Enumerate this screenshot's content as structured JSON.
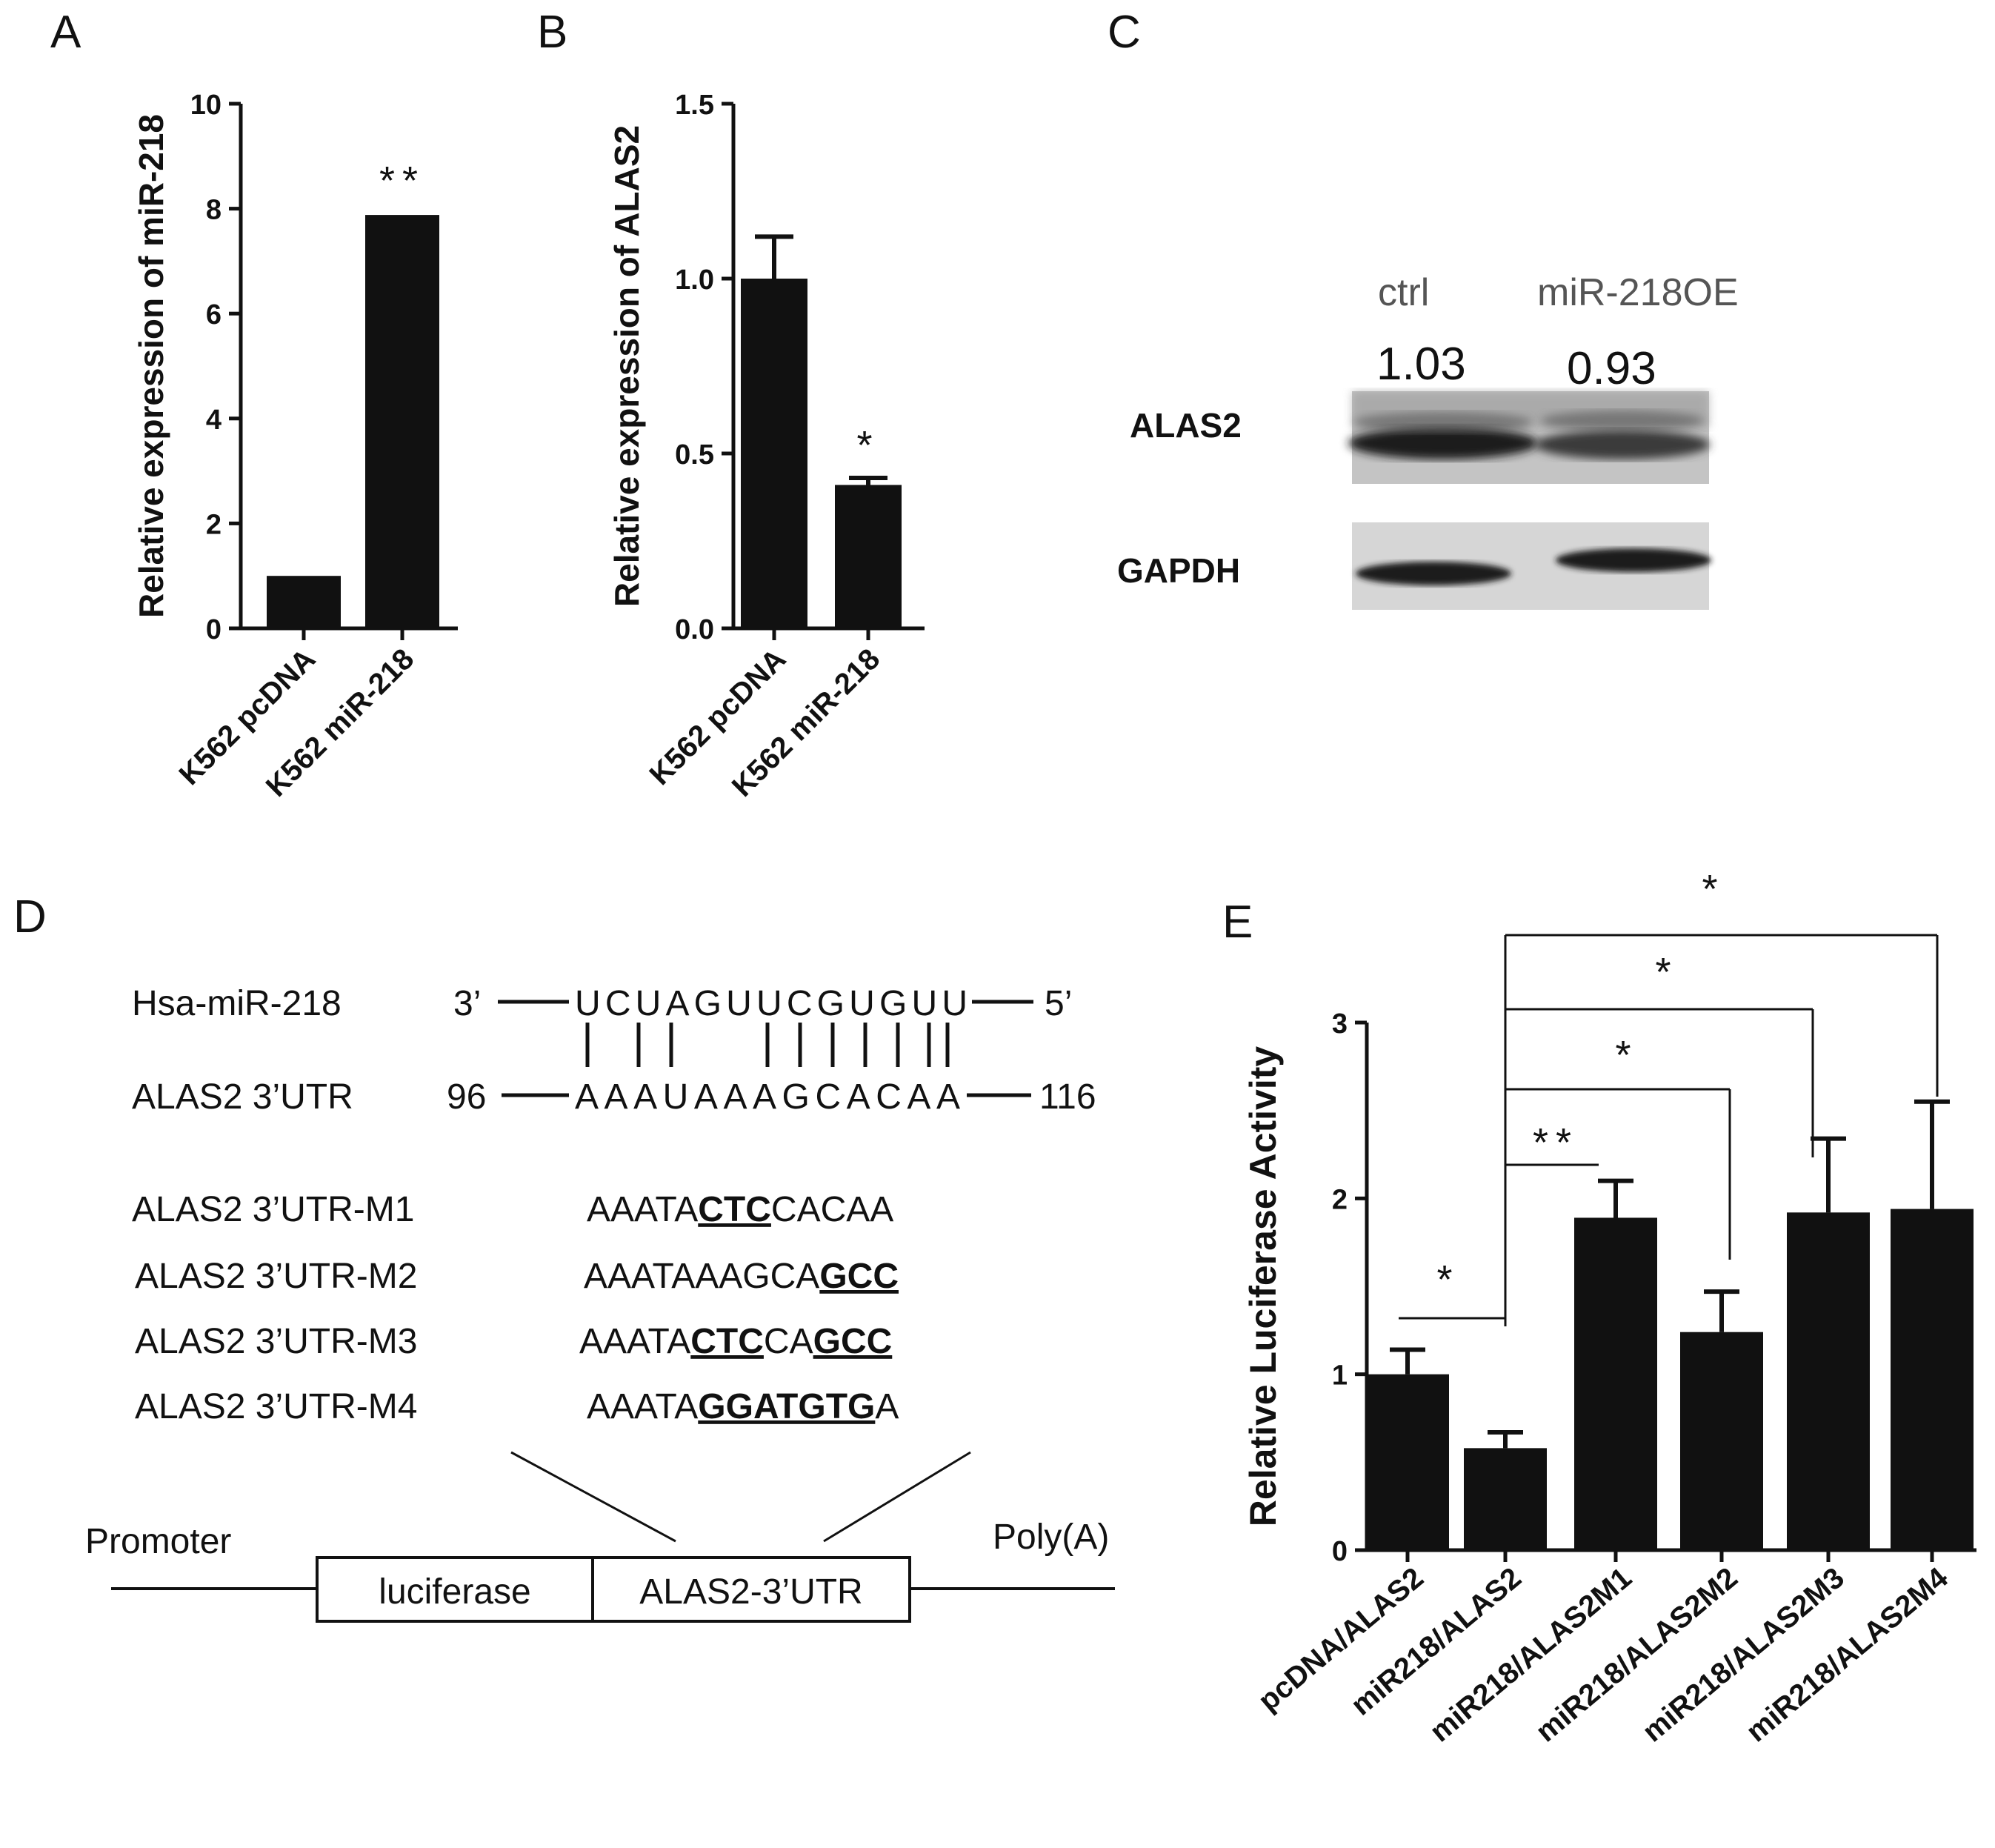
{
  "panels": {
    "a": "A",
    "b": "B",
    "c": "C",
    "d": "D",
    "e": "E"
  },
  "chart_data": [
    {
      "id": "A",
      "type": "bar",
      "categories": [
        "K562 pcDNA",
        "K562 miR-218"
      ],
      "values": [
        1.0,
        7.88
      ],
      "errors": [
        0.03,
        0.03
      ],
      "ylabel": "Relative expression of miR-218",
      "ylim": [
        0,
        10
      ],
      "yticks": [
        "0",
        "2",
        "4",
        "6",
        "8",
        "10"
      ],
      "significance": [
        "",
        "**"
      ]
    },
    {
      "id": "B",
      "type": "bar",
      "categories": [
        "K562 pcDNA",
        "K562 miR-218"
      ],
      "values": [
        1.0,
        0.41
      ],
      "errors": [
        0.12,
        0.02
      ],
      "ylabel": "Relative expression of ALAS2",
      "ylim": [
        0,
        1.5
      ],
      "yticks": [
        "0.0",
        "0.5",
        "1.0",
        "1.5"
      ],
      "significance": [
        "",
        "*"
      ]
    },
    {
      "id": "E",
      "type": "bar",
      "categories": [
        "pcDNA/ALAS2",
        "miR218/ALAS2",
        "miR218/ALAS2M1",
        "miR218/ALAS2M2",
        "miR218/ALAS2M3",
        "miR218/ALAS2M4"
      ],
      "values": [
        1.0,
        0.58,
        1.89,
        1.24,
        1.92,
        1.94
      ],
      "errors": [
        0.14,
        0.09,
        0.21,
        0.23,
        0.42,
        0.61
      ],
      "ylabel": "Relative Luciferase Activity",
      "ylim": [
        0,
        3
      ],
      "yticks": [
        "0",
        "1",
        "2",
        "3"
      ],
      "comparisons": [
        {
          "a": 0,
          "b": 1,
          "label": "*"
        },
        {
          "a": 1,
          "b": 2,
          "label": "**"
        },
        {
          "a": 1,
          "b": 3,
          "label": "*"
        },
        {
          "a": 1,
          "b": 4,
          "label": "*"
        },
        {
          "a": 1,
          "b": 5,
          "label": "*"
        }
      ]
    }
  ],
  "western": {
    "lanes": [
      "ctrl",
      "miR-218OE"
    ],
    "values": [
      "1.03",
      "0.93"
    ],
    "rows": [
      "ALAS2",
      "GAPDH"
    ]
  },
  "sequence": {
    "mir_label": "Hsa-miR-218",
    "mir_left": "3’",
    "mir_seq": "UCUAGUUCGUGUU",
    "mir_right": "5’",
    "utr_label": "ALAS2 3’UTR",
    "utr_left": "96",
    "utr_seq": "AAAUAAAGCACAA",
    "utr_right": "116",
    "mutants": [
      {
        "label": "ALAS2 3’UTR-M1",
        "pre": "AAATA",
        "mut": "CTC",
        "post": "CACAA"
      },
      {
        "label": "ALAS2 3’UTR-M2",
        "pre": "AAATAAAGCA",
        "mut": "GCC",
        "post": ""
      },
      {
        "label": "ALAS2 3’UTR-M3",
        "pre": "AAATA",
        "mut": "CTC",
        "mid": "CA",
        "mut2": "GCC",
        "post": ""
      },
      {
        "label": "ALAS2 3’UTR-M4",
        "pre": "AAATA",
        "mut": "GGATGTG",
        "post": "A"
      }
    ]
  },
  "construct": {
    "promoter": "Promoter",
    "polya": "Poly(A)",
    "luciferase": "luciferase",
    "utr": "ALAS2-3’UTR"
  }
}
